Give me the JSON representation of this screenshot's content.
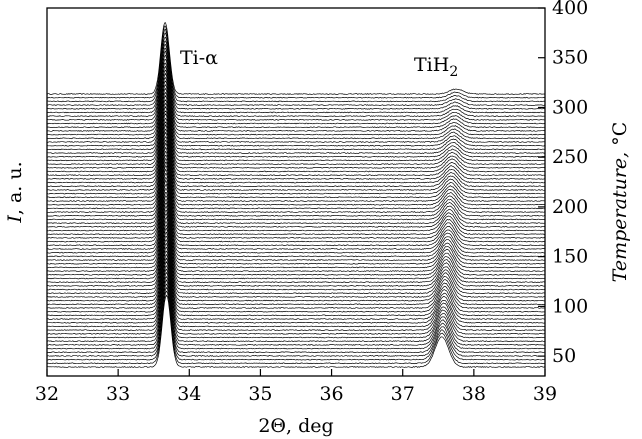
{
  "chart_data": {
    "type": "line",
    "title": "",
    "xlabel": {
      "symbol": "2Θ",
      "unit": "deg"
    },
    "ylabel_left": {
      "symbol": "I",
      "unit": "a. u."
    },
    "ylabel_right": {
      "symbol": "Temperature",
      "unit": "°C"
    },
    "xlim": [
      32,
      39
    ],
    "x_ticks": [
      "32",
      "33",
      "34",
      "35",
      "36",
      "37",
      "38",
      "39"
    ],
    "temperature_lim": [
      30,
      400
    ],
    "temperature_ticks": [
      "50",
      "100",
      "150",
      "200",
      "250",
      "300",
      "350",
      "400"
    ],
    "temperature_tick_values": [
      50,
      100,
      150,
      200,
      250,
      300,
      350,
      400
    ],
    "series_count": 75,
    "series_temperature_step": 5,
    "annotations": [
      {
        "label": "Ti-α",
        "x": 33.7
      },
      {
        "label": "TiH",
        "subscript": "2",
        "x": 37.65
      }
    ],
    "peaks": [
      {
        "phase": "Ti-α",
        "center_start": 33.68,
        "center_end": 33.66,
        "fwhm": 0.14,
        "intensity_start": 1.0,
        "intensity_end": 1.0
      },
      {
        "phase": "TiH2",
        "center_start": 37.55,
        "center_end": 37.75,
        "fwhm": 0.22,
        "intensity_start": 0.42,
        "intensity_end": 0.07
      }
    ],
    "grid": false,
    "legend": "none",
    "colors": {
      "line": "#000000",
      "background": "#ffffff"
    }
  }
}
